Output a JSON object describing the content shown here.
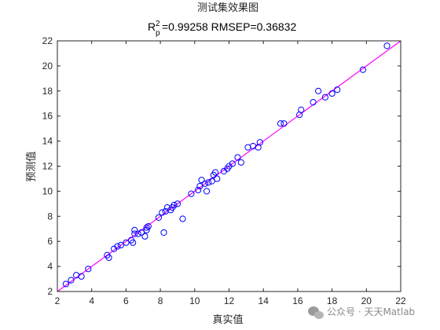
{
  "chart_data": {
    "type": "scatter",
    "title": "测试集效果图",
    "subtitle": {
      "r_letter": "R",
      "r_sup": "2",
      "r_sub": "p",
      "rest": "=0.99258  RMSEP=0.36832"
    },
    "xlabel": "真实值",
    "ylabel": "预测值",
    "xlim": [
      2,
      22
    ],
    "ylim": [
      2,
      22
    ],
    "xticks": [
      2,
      4,
      6,
      8,
      10,
      12,
      14,
      16,
      18,
      20,
      22
    ],
    "yticks": [
      2,
      4,
      6,
      8,
      10,
      12,
      14,
      16,
      18,
      20,
      22
    ],
    "grid": false,
    "reference_line": {
      "x": [
        2,
        22
      ],
      "y": [
        2,
        22
      ],
      "color": "#ff00ff"
    },
    "marker_color": "#0000ff",
    "points": [
      [
        2.5,
        2.6
      ],
      [
        2.8,
        2.9
      ],
      [
        3.1,
        3.3
      ],
      [
        3.4,
        3.2
      ],
      [
        3.8,
        3.8
      ],
      [
        4.9,
        4.9
      ],
      [
        5.0,
        4.7
      ],
      [
        5.3,
        5.4
      ],
      [
        5.5,
        5.6
      ],
      [
        5.7,
        5.7
      ],
      [
        6.0,
        5.9
      ],
      [
        6.3,
        6.1
      ],
      [
        6.4,
        5.9
      ],
      [
        6.5,
        6.6
      ],
      [
        6.5,
        6.9
      ],
      [
        6.7,
        6.6
      ],
      [
        6.9,
        6.7
      ],
      [
        7.1,
        6.4
      ],
      [
        7.2,
        6.9
      ],
      [
        7.2,
        7.1
      ],
      [
        7.3,
        7.2
      ],
      [
        7.9,
        7.9
      ],
      [
        8.1,
        8.3
      ],
      [
        8.2,
        6.7
      ],
      [
        8.3,
        8.4
      ],
      [
        8.4,
        8.7
      ],
      [
        8.6,
        8.5
      ],
      [
        8.7,
        8.7
      ],
      [
        8.8,
        8.9
      ],
      [
        9.0,
        9.0
      ],
      [
        9.3,
        7.8
      ],
      [
        9.8,
        9.8
      ],
      [
        10.2,
        10.1
      ],
      [
        10.3,
        10.4
      ],
      [
        10.4,
        10.9
      ],
      [
        10.6,
        10.6
      ],
      [
        10.7,
        10.0
      ],
      [
        10.8,
        10.7
      ],
      [
        11.0,
        10.8
      ],
      [
        11.1,
        11.3
      ],
      [
        11.2,
        11.5
      ],
      [
        11.3,
        11.0
      ],
      [
        11.7,
        11.6
      ],
      [
        11.9,
        11.8
      ],
      [
        12.0,
        12.0
      ],
      [
        12.2,
        12.2
      ],
      [
        12.5,
        12.7
      ],
      [
        12.7,
        12.3
      ],
      [
        13.1,
        13.5
      ],
      [
        13.4,
        13.6
      ],
      [
        13.7,
        13.5
      ],
      [
        13.8,
        13.9
      ],
      [
        15.0,
        15.4
      ],
      [
        15.2,
        15.4
      ],
      [
        16.1,
        16.1
      ],
      [
        16.2,
        16.5
      ],
      [
        16.9,
        17.1
      ],
      [
        17.2,
        18.0
      ],
      [
        17.6,
        17.5
      ],
      [
        18.0,
        17.8
      ],
      [
        18.3,
        18.1
      ],
      [
        19.8,
        19.7
      ],
      [
        21.2,
        21.6
      ]
    ]
  },
  "watermark": {
    "icon": "wechat-icon",
    "text": "公众号 · 天天Matlab"
  }
}
